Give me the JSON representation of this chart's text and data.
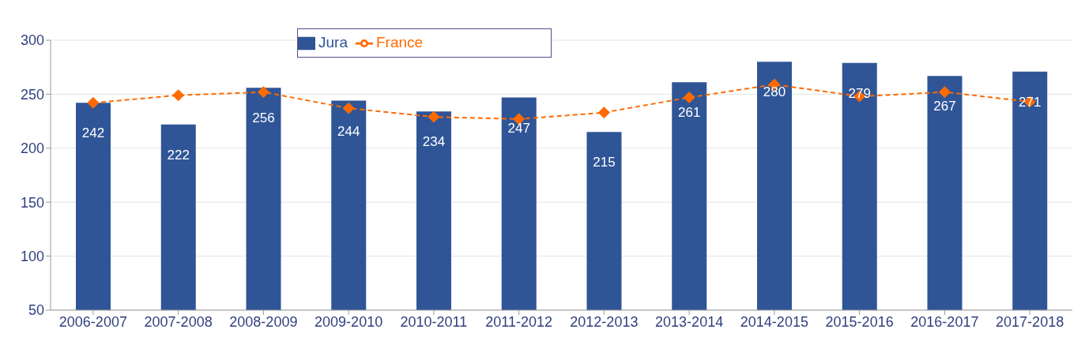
{
  "chart_data": {
    "type": "bar",
    "categories": [
      "2006-2007",
      "2007-2008",
      "2008-2009",
      "2009-2010",
      "2010-2011",
      "2011-2012",
      "2012-2013",
      "2013-2014",
      "2014-2015",
      "2015-2016",
      "2016-2017",
      "2017-2018"
    ],
    "series": [
      {
        "name": "Jura",
        "color": "#2f5597",
        "values": [
          242,
          222,
          256,
          244,
          234,
          247,
          215,
          261,
          280,
          279,
          267,
          271
        ],
        "value_labels": [
          "242",
          "222",
          "256",
          "244",
          "234",
          "247",
          "215",
          "261",
          "280",
          "279",
          "267",
          "271"
        ]
      },
      {
        "name": "France",
        "type": "line",
        "color": "#ff6a00",
        "marker": "diamond",
        "line_style": "dashed",
        "values": [
          242,
          249,
          252,
          237,
          229,
          227,
          233,
          247,
          259,
          248,
          252,
          243
        ]
      }
    ],
    "ylim": [
      50,
      300
    ],
    "yticks": [
      50,
      100,
      150,
      200,
      250,
      300
    ],
    "grid": "y",
    "legend": "top"
  }
}
